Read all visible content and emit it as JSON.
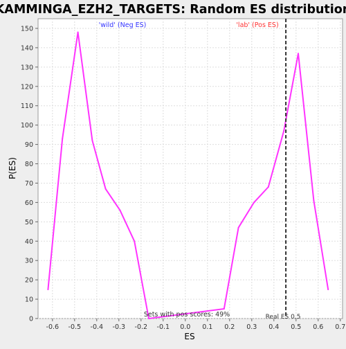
{
  "chart_data": {
    "type": "line",
    "title": "KAMMINGA_EZH2_TARGETS: Random ES distribution",
    "xlabel": "ES",
    "ylabel": "P(ES)",
    "xlim": [
      -0.665,
      0.71
    ],
    "ylim": [
      0,
      155
    ],
    "xticks": [
      -0.6,
      -0.5,
      -0.4,
      -0.3,
      -0.2,
      -0.1,
      0.0,
      0.1,
      0.2,
      0.3,
      0.4,
      0.5,
      0.6,
      0.7
    ],
    "xtick_labels": [
      "-0.6",
      "-0.5",
      "-0.4",
      "-0.3",
      "-0.2",
      "-0.1",
      "0.0",
      "0.1",
      "0.2",
      "0.3",
      "0.4",
      "0.5",
      "0.6",
      "0.7"
    ],
    "yticks": [
      0,
      10,
      20,
      30,
      40,
      50,
      60,
      70,
      80,
      90,
      100,
      110,
      120,
      130,
      140,
      150
    ],
    "ytick_labels": [
      "0",
      "10",
      "20",
      "30",
      "40",
      "50",
      "60",
      "70",
      "80",
      "90",
      "100",
      "110",
      "120",
      "130",
      "140",
      "150"
    ],
    "grid": true,
    "series": [
      {
        "color": "#ff33ff",
        "x": [
          -0.62,
          -0.555,
          -0.485,
          -0.42,
          -0.36,
          -0.295,
          -0.23,
          -0.165,
          0.175,
          0.24,
          0.31,
          0.375,
          0.445,
          0.51,
          0.58,
          0.645
        ],
        "y": [
          15,
          93,
          148,
          92,
          67,
          56,
          40,
          0,
          5,
          47,
          60,
          68,
          97,
          137,
          61,
          15
        ]
      }
    ],
    "annotations": {
      "neg_label": "'wild' (Neg ES)",
      "neg_color": "#3333ff",
      "pos_label": "'lab' (Pos ES)",
      "pos_color": "#ff3333",
      "pos_scores_label": "Sets with pos scores: 49%",
      "real_es_label": "Real ES 0.5",
      "real_es_value": 0.454
    }
  }
}
